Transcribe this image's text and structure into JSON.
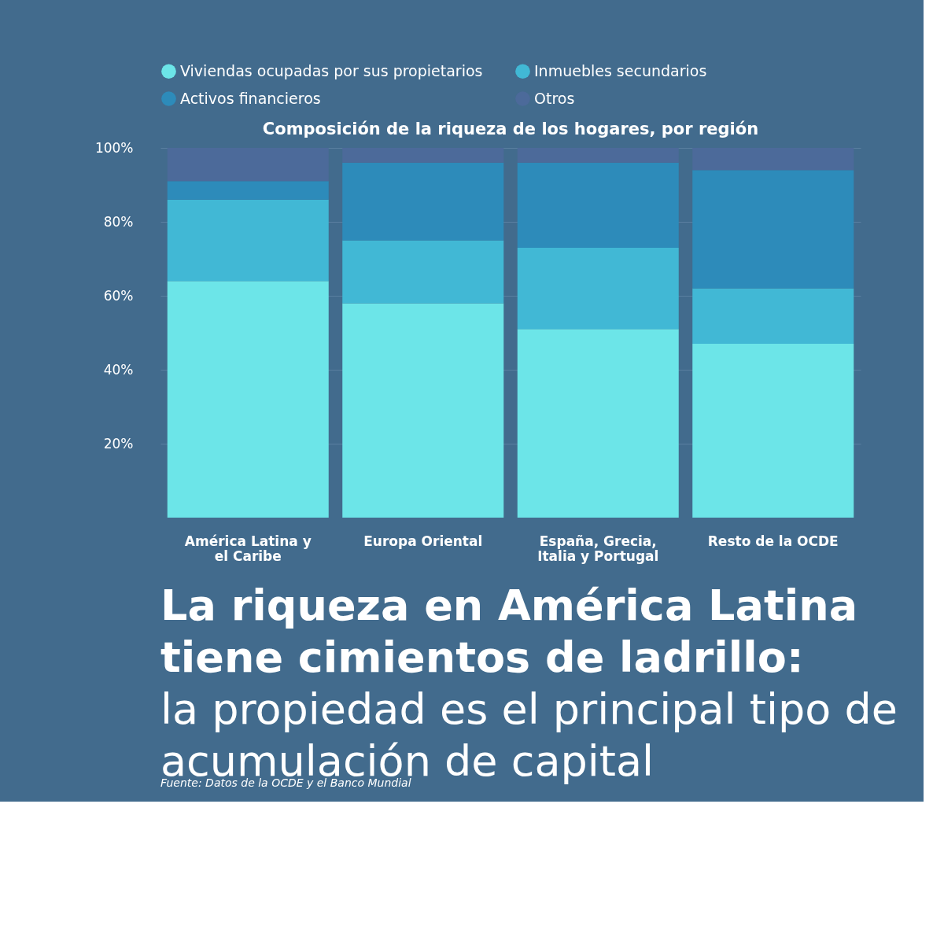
{
  "chart_data": {
    "type": "bar",
    "stacked": true,
    "title": "Composición de la riqueza de los hogares, por región",
    "categories": [
      "América Latina y el Caribe",
      "Europa Oriental",
      "España, Grecia, Italia y Portugal",
      "Resto de la OCDE"
    ],
    "series": [
      {
        "name": "Viviendas ocupadas por sus propietarios",
        "color": "#6ce5e8",
        "values": [
          64,
          58,
          51,
          47
        ]
      },
      {
        "name": "Inmuebles secundarios",
        "color": "#41b8d5",
        "values": [
          22,
          17,
          22,
          15
        ]
      },
      {
        "name": "Activos financieros",
        "color": "#2d8bba",
        "values": [
          5,
          21,
          23,
          32
        ]
      },
      {
        "name": "Otros",
        "color": "#4c6a9a",
        "values": [
          9,
          4,
          4,
          6
        ]
      }
    ],
    "ylim": [
      0,
      100
    ],
    "yticks": [
      {
        "value": 20,
        "label": "20%"
      },
      {
        "value": 40,
        "label": "40%"
      },
      {
        "value": 60,
        "label": "60%"
      },
      {
        "value": 80,
        "label": "80%"
      },
      {
        "value": 100,
        "label": "100%"
      }
    ],
    "grid": "y",
    "legend": "top",
    "annotations": [
      "La riqueza en América Latina tiene cimientos de ladrillo:",
      "la propiedad es el principal tipo de acumulación de capital",
      "Fuente: Datos de la OCDE y el Banco Mundial"
    ]
  }
}
